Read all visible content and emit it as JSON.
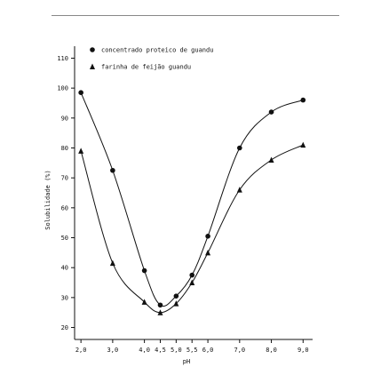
{
  "chart_data": {
    "type": "line",
    "title": "",
    "xlabel": "pH",
    "ylabel": "Solubilidade (%)",
    "xlim": [
      1.8,
      9.3
    ],
    "ylim": [
      16,
      114
    ],
    "x_ticks": [
      2.0,
      3.0,
      4.0,
      4.5,
      5.0,
      5.5,
      6.0,
      7.0,
      8.0,
      9.0
    ],
    "x_tick_labels": [
      "2,0",
      "3,0",
      "4,0",
      "4,5",
      "5,0",
      "5,5",
      "6,0",
      "7,0",
      "8,0",
      "9,0"
    ],
    "y_ticks": [
      20,
      30,
      40,
      50,
      60,
      70,
      80,
      90,
      100,
      110
    ],
    "y_tick_labels": [
      "20",
      "30",
      "40",
      "50",
      "60",
      "70",
      "80",
      "90",
      "100",
      "110"
    ],
    "legend_position": "top-left",
    "series": [
      {
        "name": "concentrado proteico de guandu",
        "marker": "circle",
        "color": "#111111",
        "x": [
          2.0,
          3.0,
          4.0,
          4.5,
          5.0,
          5.5,
          6.0,
          7.0,
          8.0,
          9.0
        ],
        "y": [
          98.5,
          72.5,
          39,
          27.5,
          30.5,
          37.5,
          50.5,
          80,
          92,
          96
        ]
      },
      {
        "name": "farinha de feijão guandu",
        "marker": "triangle",
        "color": "#111111",
        "x": [
          2.0,
          3.0,
          4.0,
          4.5,
          5.0,
          5.5,
          6.0,
          7.0,
          8.0,
          9.0
        ],
        "y": [
          79,
          41.5,
          28.5,
          25,
          28,
          35,
          45,
          66,
          76,
          81
        ]
      }
    ]
  }
}
